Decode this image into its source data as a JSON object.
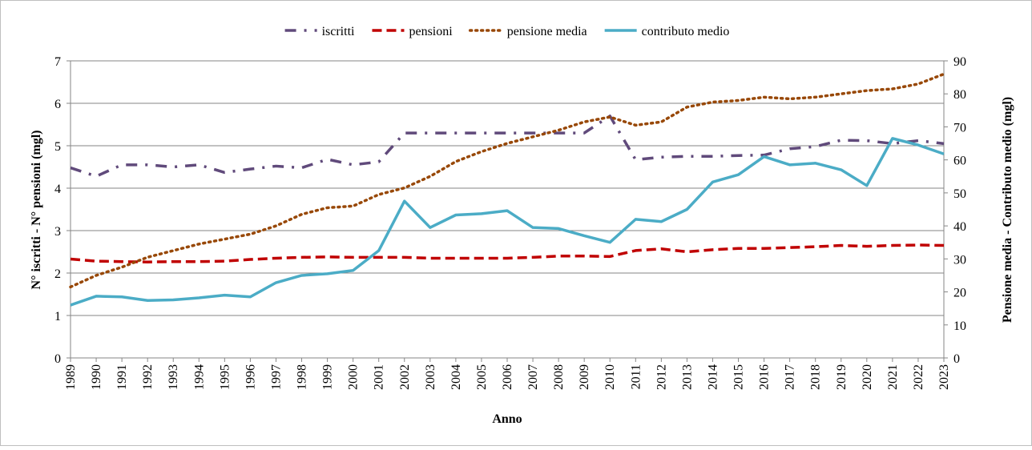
{
  "chart_data": {
    "type": "line",
    "xlabel": "Anno",
    "ylabel": "N° iscritti - N° pensioni (mgl)",
    "y2label": "Pensione media - Contributo medio (mgl)",
    "x": [
      1989,
      1990,
      1991,
      1992,
      1993,
      1994,
      1995,
      1996,
      1997,
      1998,
      1999,
      2000,
      2001,
      2002,
      2003,
      2004,
      2005,
      2006,
      2007,
      2008,
      2009,
      2010,
      2011,
      2012,
      2013,
      2014,
      2015,
      2016,
      2017,
      2018,
      2019,
      2020,
      2021,
      2022,
      2023
    ],
    "xlim": [
      1989,
      2023
    ],
    "xticks": [
      1989,
      1990,
      1991,
      1992,
      1993,
      1994,
      1995,
      1996,
      1997,
      1998,
      1999,
      2000,
      2001,
      2002,
      2003,
      2004,
      2005,
      2006,
      2007,
      2008,
      2009,
      2010,
      2011,
      2012,
      2013,
      2014,
      2015,
      2016,
      2017,
      2018,
      2019,
      2020,
      2021,
      2022,
      2023
    ],
    "ylim": [
      0,
      7
    ],
    "yticks": [
      0,
      1,
      2,
      3,
      4,
      5,
      6,
      7
    ],
    "y2lim": [
      0,
      90
    ],
    "y2ticks": [
      0,
      10,
      20,
      30,
      40,
      50,
      60,
      70,
      80,
      90
    ],
    "grid": true,
    "legend": "top",
    "series": [
      {
        "name": "iscritti",
        "color": "#604a7b",
        "dash": "dashdot",
        "values": [
          4.48,
          4.28,
          4.55,
          4.55,
          4.5,
          4.55,
          4.37,
          4.45,
          4.52,
          4.48,
          4.68,
          4.55,
          4.62,
          5.3,
          5.3,
          5.3,
          5.3,
          5.3,
          5.3,
          5.3,
          5.3,
          5.7,
          4.67,
          4.73,
          4.75,
          4.75,
          4.77,
          4.78,
          4.93,
          4.98,
          5.13,
          5.12,
          5.05,
          5.12,
          5.05
        ]
      },
      {
        "name": "pensioni",
        "color": "#c00000",
        "dash": "dashed",
        "values": [
          2.33,
          2.28,
          2.27,
          2.26,
          2.27,
          2.27,
          2.28,
          2.32,
          2.35,
          2.37,
          2.38,
          2.37,
          2.37,
          2.37,
          2.35,
          2.35,
          2.35,
          2.35,
          2.37,
          2.4,
          2.4,
          2.39,
          2.53,
          2.57,
          2.5,
          2.55,
          2.58,
          2.58,
          2.6,
          2.62,
          2.65,
          2.63,
          2.65,
          2.66,
          2.65
        ]
      },
      {
        "name": "pensione media",
        "color": "#984807",
        "dash": "dotted",
        "axis": "y2",
        "values": [
          21.5,
          25,
          27.5,
          30.5,
          32.5,
          34.5,
          36,
          37.5,
          40,
          43.5,
          45.5,
          46,
          49.5,
          51.5,
          55,
          59.5,
          62.5,
          65,
          67,
          69,
          71.5,
          73,
          70.5,
          71.5,
          76,
          77.5,
          78,
          79,
          78.5,
          79,
          80,
          81,
          81.5,
          83,
          86
        ]
      },
      {
        "name": "contributo medio",
        "color": "#4bacc6",
        "dash": "solid",
        "axis": "y2",
        "values": [
          16,
          18.7,
          18.5,
          17.4,
          17.6,
          18.2,
          19,
          18.5,
          22.8,
          25,
          25.5,
          26.5,
          32.5,
          47.5,
          39.5,
          43.3,
          43.7,
          44.6,
          39.5,
          39.2,
          37,
          35,
          42,
          41.3,
          45,
          53.3,
          55.5,
          61,
          58.5,
          59,
          57,
          52.2,
          66.5,
          64.5,
          61.8
        ]
      }
    ]
  }
}
